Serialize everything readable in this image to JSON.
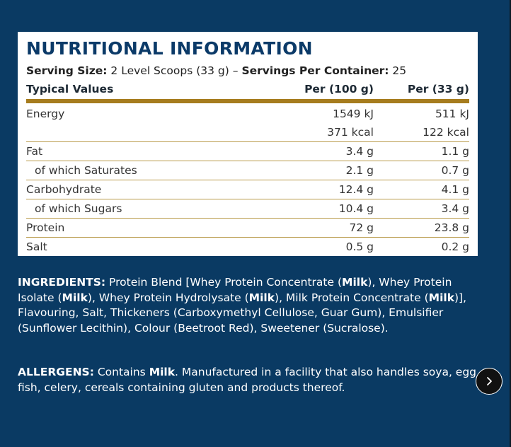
{
  "panel": {
    "title": "NUTRITIONAL INFORMATION",
    "serving_size_label": "Serving Size:",
    "serving_size_value": "2 Level Scoops (33 g)",
    "separator": "–",
    "servings_label": "Servings Per Container:",
    "servings_value": "25",
    "headers": [
      "Typical Values",
      "Per (100 g)",
      "Per (33 g)"
    ],
    "rows": [
      {
        "name": "Energy",
        "per100": "1549 kJ",
        "perServing": "511 kJ"
      },
      {
        "name": "",
        "per100": "371 kcal",
        "perServing": "122 kcal"
      },
      {
        "name": "Fat",
        "per100": "3.4 g",
        "perServing": "1.1 g"
      },
      {
        "name": "of which Saturates",
        "per100": "2.1 g",
        "perServing": "0.7 g"
      },
      {
        "name": "Carbohydrate",
        "per100": "12.4 g",
        "perServing": "4.1 g"
      },
      {
        "name": "of which Sugars",
        "per100": "10.4 g",
        "perServing": "3.4 g"
      },
      {
        "name": "Protein",
        "per100": "72 g",
        "perServing": "23.8 g"
      },
      {
        "name": "Salt",
        "per100": "0.5 g",
        "perServing": "0.2 g"
      }
    ]
  },
  "ingredients": {
    "label": "INGREDIENTS:",
    "t1": " Protein Blend [Whey Protein Concentrate (",
    "b1": "Milk",
    "t2": "), Whey Protein Isolate (",
    "b2": "Milk",
    "t3": "), Whey Protein Hydrolysate (",
    "b3": "Milk",
    "t4": "), Milk Protein Concentrate (",
    "b4": "Milk",
    "t5": ")], Flavouring, Salt, Thickeners (Carboxymethyl Cellulose, Guar Gum), Emulsifier (Sunflower Lecithin), Colour (Beetroot Red), Sweetener (Sucralose)."
  },
  "allergens": {
    "label": "ALLERGENS:",
    "t1": " Contains ",
    "b1": "Milk",
    "t2": ". Manufactured in a facility that also handles soya, egg, fish, celery, cereals containing gluten and products thereof."
  },
  "icons": {
    "next": "chevron-right-icon"
  },
  "colors": {
    "background": "#0a3a63",
    "title": "#0b3a68",
    "header_rule": "#a67c1e",
    "row_rule": "#b99a4a"
  }
}
